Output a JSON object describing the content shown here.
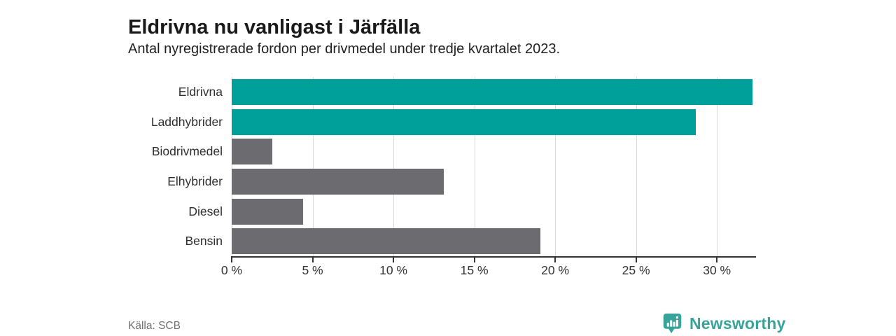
{
  "header": {
    "title": "Eldrivna nu vanligast i Järfälla",
    "subtitle": "Antal nyregistrerade fordon per drivmedel under tredje kvartalet 2023."
  },
  "chart_data": {
    "type": "bar",
    "orientation": "horizontal",
    "title": "Eldrivna nu vanligast i Järfälla",
    "subtitle": "Antal nyregistrerade fordon per drivmedel under tredje kvartalet 2023.",
    "categories": [
      "Eldrivna",
      "Laddhybrider",
      "Biodrivmedel",
      "Elhybrider",
      "Diesel",
      "Bensin"
    ],
    "values": [
      32.2,
      28.7,
      2.5,
      13.1,
      4.4,
      19.1
    ],
    "unit": "%",
    "xlim": [
      0,
      32.2
    ],
    "xticks": [
      0,
      5,
      10,
      15,
      20,
      25,
      30
    ],
    "xtick_labels": [
      "0 %",
      "5 %",
      "10 %",
      "15 %",
      "20 %",
      "25 %",
      "30 %"
    ],
    "grid": true,
    "legend": "none",
    "bar_colors": [
      "#00a09a",
      "#00a09a",
      "#6b6b70",
      "#6b6b70",
      "#6b6b70",
      "#6b6b70"
    ]
  },
  "colors": {
    "highlight": "#00a09a",
    "neutral": "#6b6b70",
    "gridline": "#d9d9d9",
    "axis": "#333333",
    "brand_teal": "#38a39a"
  },
  "footer": {
    "source": "Källa: SCB",
    "brand": "Newsworthy",
    "logo_icon": "speech-bubble-bar-chart-icon"
  }
}
